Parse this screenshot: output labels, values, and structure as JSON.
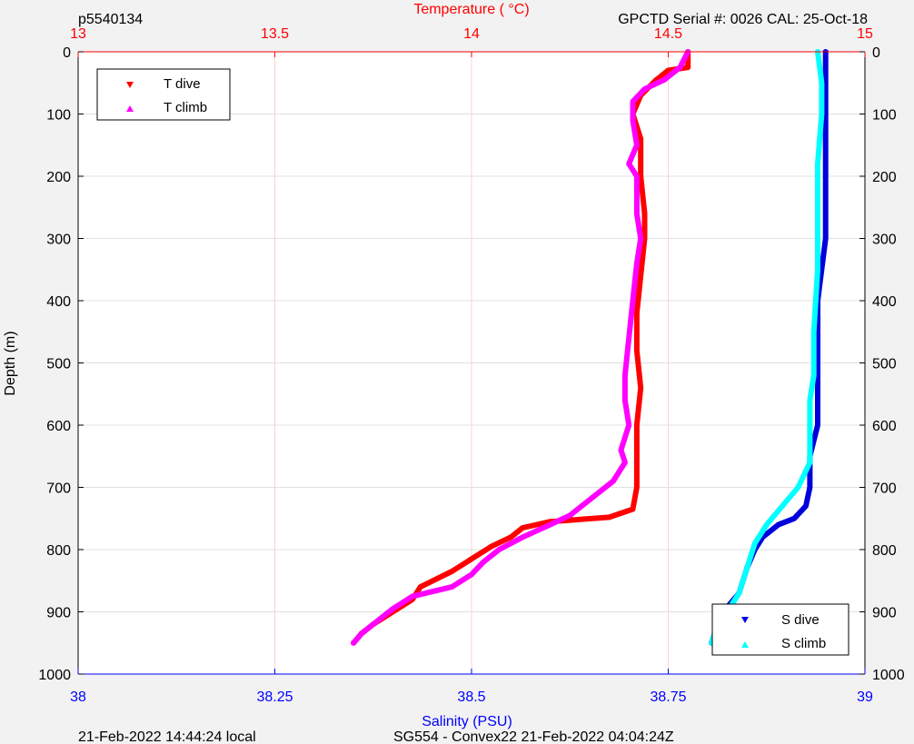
{
  "header": {
    "profile_id": "p5540134",
    "calibration": "GPCTD Serial #: 0026 CAL: 25-Oct-18"
  },
  "footer": {
    "local_time": "21-Feb-2022 14:44:24 local",
    "mission": "SG554 - Convex22 21-Feb-2022 04:04:24Z"
  },
  "colors": {
    "temperature_axis": "#ff0000",
    "salinity_axis": "#0000ff",
    "t_dive": "#ff0000",
    "t_climb": "#ff00ff",
    "s_dive": "#0000dd",
    "s_climb": "#00ffff",
    "grid": "#e0e0e0",
    "temp_grid": "#ffd0d0"
  },
  "chart_data": {
    "type": "line",
    "title_top": "Temperature (    °C)",
    "xlabel_bottom": "Salinity (PSU)",
    "ylabel": "Depth (m)",
    "temperature_axis": {
      "range": [
        13,
        15
      ],
      "ticks": [
        "13",
        "13.5",
        "14",
        "14.5",
        "15"
      ],
      "tick_values": [
        13,
        13.5,
        14,
        14.5,
        15
      ]
    },
    "salinity_axis": {
      "range": [
        38,
        39
      ],
      "ticks": [
        "38",
        "38.25",
        "38.5",
        "38.75",
        "39"
      ],
      "tick_values": [
        38,
        38.25,
        38.5,
        38.75,
        39
      ]
    },
    "depth_axis": {
      "range": [
        0,
        1000
      ],
      "reversed": true,
      "ticks": [
        "0",
        "100",
        "200",
        "300",
        "400",
        "500",
        "600",
        "700",
        "800",
        "900",
        "1000"
      ],
      "tick_values": [
        0,
        100,
        200,
        300,
        400,
        500,
        600,
        700,
        800,
        900,
        1000
      ]
    },
    "grid": true,
    "legend_temperature": {
      "placement": "top-left",
      "entries": [
        "T dive",
        "T climb"
      ]
    },
    "legend_salinity": {
      "placement": "bottom-right",
      "entries": [
        "S dive",
        "S climb"
      ]
    },
    "series": [
      {
        "name": "T dive",
        "axis": "temperature",
        "marker": "triangle-down",
        "points": [
          [
            14.55,
            0
          ],
          [
            14.55,
            25
          ],
          [
            14.5,
            30
          ],
          [
            14.47,
            45
          ],
          [
            14.43,
            70
          ],
          [
            14.41,
            100
          ],
          [
            14.43,
            140
          ],
          [
            14.43,
            200
          ],
          [
            14.44,
            260
          ],
          [
            14.44,
            300
          ],
          [
            14.43,
            360
          ],
          [
            14.42,
            420
          ],
          [
            14.42,
            480
          ],
          [
            14.43,
            540
          ],
          [
            14.42,
            600
          ],
          [
            14.42,
            650
          ],
          [
            14.42,
            700
          ],
          [
            14.41,
            735
          ],
          [
            14.35,
            748
          ],
          [
            14.2,
            755
          ],
          [
            14.13,
            765
          ],
          [
            14.1,
            780
          ],
          [
            14.05,
            795
          ],
          [
            14.0,
            815
          ],
          [
            13.95,
            835
          ],
          [
            13.87,
            860
          ],
          [
            13.85,
            880
          ],
          [
            13.8,
            900
          ],
          [
            13.75,
            920
          ],
          [
            13.72,
            935
          ],
          [
            13.7,
            950
          ]
        ]
      },
      {
        "name": "T climb",
        "axis": "temperature",
        "marker": "triangle-up",
        "points": [
          [
            14.55,
            0
          ],
          [
            14.53,
            25
          ],
          [
            14.49,
            45
          ],
          [
            14.44,
            60
          ],
          [
            14.41,
            80
          ],
          [
            14.41,
            110
          ],
          [
            14.42,
            150
          ],
          [
            14.4,
            180
          ],
          [
            14.42,
            200
          ],
          [
            14.42,
            260
          ],
          [
            14.43,
            300
          ],
          [
            14.42,
            340
          ],
          [
            14.41,
            400
          ],
          [
            14.4,
            460
          ],
          [
            14.39,
            520
          ],
          [
            14.39,
            560
          ],
          [
            14.4,
            600
          ],
          [
            14.38,
            640
          ],
          [
            14.39,
            660
          ],
          [
            14.36,
            690
          ],
          [
            14.3,
            720
          ],
          [
            14.25,
            745
          ],
          [
            14.2,
            760
          ],
          [
            14.13,
            780
          ],
          [
            14.07,
            800
          ],
          [
            14.03,
            820
          ],
          [
            14.0,
            840
          ],
          [
            13.95,
            860
          ],
          [
            13.85,
            875
          ],
          [
            13.8,
            895
          ],
          [
            13.75,
            920
          ],
          [
            13.72,
            935
          ],
          [
            13.7,
            950
          ]
        ]
      },
      {
        "name": "S dive",
        "axis": "salinity",
        "marker": "triangle-down",
        "points": [
          [
            38.95,
            0
          ],
          [
            38.95,
            100
          ],
          [
            38.95,
            200
          ],
          [
            38.95,
            300
          ],
          [
            38.94,
            400
          ],
          [
            38.94,
            500
          ],
          [
            38.94,
            560
          ],
          [
            38.94,
            600
          ],
          [
            38.93,
            650
          ],
          [
            38.93,
            700
          ],
          [
            38.925,
            730
          ],
          [
            38.91,
            750
          ],
          [
            38.89,
            760
          ],
          [
            38.87,
            780
          ],
          [
            38.86,
            800
          ],
          [
            38.85,
            830
          ],
          [
            38.84,
            870
          ],
          [
            38.82,
            900
          ],
          [
            38.81,
            930
          ],
          [
            38.805,
            950
          ]
        ]
      },
      {
        "name": "S climb",
        "axis": "salinity",
        "marker": "triangle-up",
        "points": [
          [
            38.94,
            0
          ],
          [
            38.945,
            50
          ],
          [
            38.945,
            100
          ],
          [
            38.94,
            180
          ],
          [
            38.94,
            250
          ],
          [
            38.94,
            350
          ],
          [
            38.935,
            450
          ],
          [
            38.935,
            520
          ],
          [
            38.93,
            560
          ],
          [
            38.93,
            620
          ],
          [
            38.93,
            660
          ],
          [
            38.915,
            700
          ],
          [
            38.895,
            730
          ],
          [
            38.875,
            760
          ],
          [
            38.86,
            790
          ],
          [
            38.85,
            830
          ],
          [
            38.84,
            870
          ],
          [
            38.825,
            900
          ],
          [
            38.81,
            930
          ],
          [
            38.805,
            950
          ]
        ]
      }
    ]
  }
}
